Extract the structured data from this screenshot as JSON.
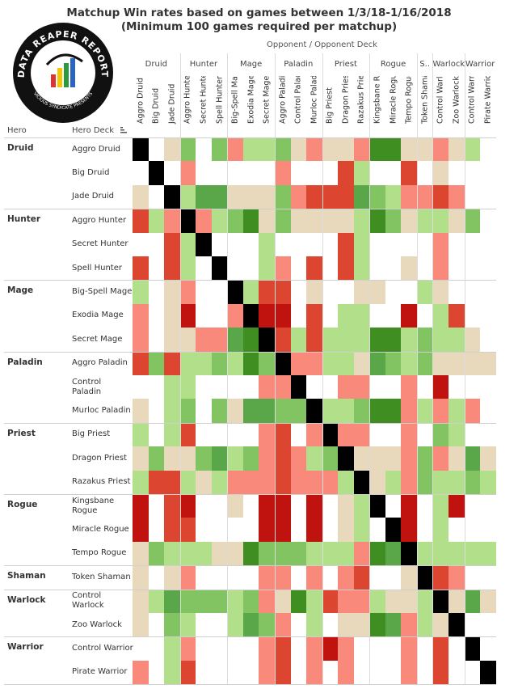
{
  "title_line1": "Matchup Win rates based on games between 1/3/18-1/16/2018",
  "title_line2": "(Minimum 100 games required per matchup)",
  "logo_text": "DATA REAPER REPORT",
  "logo_subtext": "VICIOUS SYNDICATE PRESENTS",
  "opponent_header": "Opponent  /  Opponent Deck",
  "hero_header": "Hero",
  "deck_header": "Hero Deck",
  "colors": {
    "black": "#000000",
    "dark_red": "#c0120f",
    "red": "#dc4530",
    "salmon": "#f9897a",
    "beige": "#e8d9bd",
    "light_green": "#b2e08a",
    "green": "#82c462",
    "mid_green": "#5aa74a",
    "dark_green": "#3f8e22",
    "empty": "#ffffff"
  },
  "chart_data": {
    "type": "heatmap",
    "title": "Matchup Win rates based on games between 1/3/18-1/16/2018",
    "subtitle": "(Minimum 100 games required per matchup)",
    "xlabel": "Opponent  /  Opponent Deck",
    "ylabel": "Hero / Hero Deck",
    "legend": "none",
    "value_encoding": "category codes: 0=empty (under 100 games), 1=dark red, 2=red, 3=salmon, 4=beige, 5=light green, 6=green, 7=mid green, 8=dark green, 9=mirror (black)",
    "column_groups": [
      {
        "label": "Druid",
        "count": 3
      },
      {
        "label": "Hunter",
        "count": 3
      },
      {
        "label": "Mage",
        "count": 3
      },
      {
        "label": "Paladin",
        "count": 3
      },
      {
        "label": "Priest",
        "count": 3
      },
      {
        "label": "Rogue",
        "count": 3
      },
      {
        "label": "S..",
        "count": 1
      },
      {
        "label": "Warlock",
        "count": 2
      },
      {
        "label": "Warrior",
        "count": 2
      }
    ],
    "columns": [
      "Aggro Druid",
      "Big Druid",
      "Jade Druid",
      "Aggro Hunter",
      "Secret Hunter",
      "Spell Hunter",
      "Big-Spell Mage",
      "Exodia Mage",
      "Secret Mage",
      "Aggro Paladin",
      "Control Paladin",
      "Murloc Paladin",
      "Big Priest",
      "Dragon Priest",
      "Razakus Priest",
      "Kingsbane Ro..",
      "Miracle Rogue",
      "Tempo Rogue",
      "Token Shaman",
      "Control Warlock",
      "Zoo Warlock",
      "Control Warrior",
      "Pirate Warrior"
    ],
    "row_groups": [
      {
        "label": "Druid",
        "count": 3
      },
      {
        "label": "Hunter",
        "count": 3
      },
      {
        "label": "Mage",
        "count": 3
      },
      {
        "label": "Paladin",
        "count": 3
      },
      {
        "label": "Priest",
        "count": 3
      },
      {
        "label": "Rogue",
        "count": 3
      },
      {
        "label": "Shaman",
        "count": 1
      },
      {
        "label": "Warlock",
        "count": 2
      },
      {
        "label": "Warrior",
        "count": 2
      }
    ],
    "rows": [
      "Aggro Druid",
      "Big Druid",
      "Jade Druid",
      "Aggro Hunter",
      "Secret Hunter",
      "Spell Hunter",
      "Big-Spell Mage",
      "Exodia Mage",
      "Secret Mage",
      "Aggro Paladin",
      "Control Paladin",
      "Murloc Paladin",
      "Big Priest",
      "Dragon Priest",
      "Razakus Priest",
      "Kingsbane Rogue",
      "Miracle Rogue",
      "Tempo Rogue",
      "Token Shaman",
      "Control Warlock",
      "Zoo Warlock",
      "Control Warrior",
      "Pirate Warrior"
    ],
    "values": [
      [
        9,
        0,
        4,
        6,
        0,
        6,
        3,
        5,
        5,
        6,
        4,
        3,
        4,
        4,
        3,
        8,
        8,
        4,
        4,
        3,
        4,
        5,
        0
      ],
      [
        0,
        9,
        0,
        3,
        0,
        0,
        0,
        0,
        0,
        3,
        0,
        0,
        0,
        2,
        5,
        0,
        0,
        2,
        0,
        4,
        0,
        0,
        0
      ],
      [
        4,
        0,
        9,
        5,
        7,
        7,
        4,
        4,
        4,
        6,
        3,
        2,
        2,
        2,
        7,
        6,
        5,
        3,
        3,
        2,
        3,
        0,
        0
      ],
      [
        2,
        5,
        3,
        9,
        3,
        5,
        6,
        8,
        4,
        6,
        4,
        4,
        4,
        4,
        5,
        8,
        6,
        4,
        5,
        5,
        4,
        6,
        0
      ],
      [
        0,
        0,
        2,
        5,
        9,
        0,
        0,
        0,
        5,
        0,
        0,
        0,
        0,
        2,
        5,
        0,
        0,
        0,
        0,
        3,
        0,
        0,
        0
      ],
      [
        2,
        0,
        2,
        5,
        0,
        9,
        0,
        0,
        5,
        3,
        0,
        2,
        0,
        2,
        5,
        0,
        0,
        4,
        0,
        3,
        0,
        0,
        0
      ],
      [
        5,
        0,
        4,
        3,
        0,
        0,
        9,
        5,
        2,
        2,
        0,
        4,
        0,
        0,
        4,
        4,
        0,
        0,
        5,
        4,
        0,
        0,
        0
      ],
      [
        3,
        0,
        4,
        1,
        0,
        0,
        3,
        9,
        1,
        1,
        0,
        2,
        0,
        5,
        5,
        0,
        0,
        1,
        0,
        5,
        2,
        0,
        0
      ],
      [
        3,
        0,
        4,
        4,
        3,
        3,
        7,
        8,
        9,
        2,
        5,
        2,
        5,
        5,
        5,
        8,
        8,
        5,
        6,
        5,
        5,
        4,
        0
      ],
      [
        2,
        6,
        2,
        5,
        5,
        6,
        5,
        8,
        6,
        9,
        3,
        3,
        5,
        5,
        4,
        7,
        6,
        5,
        6,
        4,
        4,
        4,
        4
      ],
      [
        0,
        0,
        5,
        5,
        0,
        0,
        0,
        0,
        3,
        3,
        9,
        0,
        0,
        3,
        3,
        0,
        0,
        3,
        0,
        1,
        0,
        0,
        0
      ],
      [
        4,
        0,
        5,
        6,
        0,
        6,
        4,
        7,
        7,
        6,
        6,
        9,
        5,
        5,
        6,
        8,
        8,
        3,
        5,
        3,
        5,
        3,
        0
      ],
      [
        5,
        0,
        5,
        2,
        0,
        0,
        0,
        0,
        3,
        2,
        0,
        3,
        9,
        3,
        3,
        0,
        0,
        3,
        0,
        6,
        5,
        0,
        0
      ],
      [
        4,
        6,
        4,
        4,
        6,
        7,
        5,
        6,
        3,
        2,
        3,
        5,
        6,
        9,
        4,
        4,
        4,
        3,
        6,
        3,
        4,
        7,
        4
      ],
      [
        5,
        2,
        2,
        5,
        4,
        5,
        3,
        3,
        3,
        2,
        3,
        3,
        3,
        5,
        9,
        4,
        5,
        3,
        6,
        5,
        5,
        6,
        5
      ],
      [
        1,
        0,
        2,
        1,
        0,
        0,
        4,
        0,
        1,
        1,
        0,
        1,
        0,
        4,
        5,
        9,
        0,
        1,
        0,
        5,
        1,
        0,
        0
      ],
      [
        1,
        0,
        2,
        2,
        0,
        0,
        0,
        0,
        1,
        1,
        0,
        1,
        0,
        4,
        5,
        0,
        9,
        1,
        0,
        5,
        0,
        0,
        0
      ],
      [
        4,
        6,
        5,
        5,
        5,
        4,
        4,
        8,
        6,
        6,
        6,
        5,
        5,
        5,
        3,
        8,
        7,
        9,
        5,
        5,
        5,
        5,
        5
      ],
      [
        4,
        0,
        4,
        3,
        0,
        0,
        0,
        0,
        3,
        3,
        0,
        3,
        0,
        3,
        2,
        0,
        0,
        4,
        9,
        2,
        3,
        0,
        0
      ],
      [
        4,
        5,
        7,
        6,
        6,
        6,
        5,
        6,
        3,
        4,
        8,
        5,
        2,
        3,
        3,
        5,
        4,
        4,
        5,
        9,
        4,
        7,
        4
      ],
      [
        4,
        0,
        6,
        5,
        0,
        0,
        5,
        7,
        6,
        3,
        0,
        5,
        0,
        4,
        4,
        8,
        7,
        3,
        5,
        4,
        9,
        0,
        0
      ],
      [
        0,
        0,
        5,
        3,
        0,
        0,
        0,
        0,
        3,
        2,
        0,
        3,
        1,
        3,
        0,
        0,
        0,
        3,
        0,
        2,
        0,
        9,
        0
      ],
      [
        3,
        0,
        5,
        2,
        0,
        0,
        0,
        0,
        3,
        2,
        0,
        3,
        0,
        3,
        0,
        0,
        0,
        3,
        0,
        2,
        0,
        0,
        9
      ]
    ]
  }
}
